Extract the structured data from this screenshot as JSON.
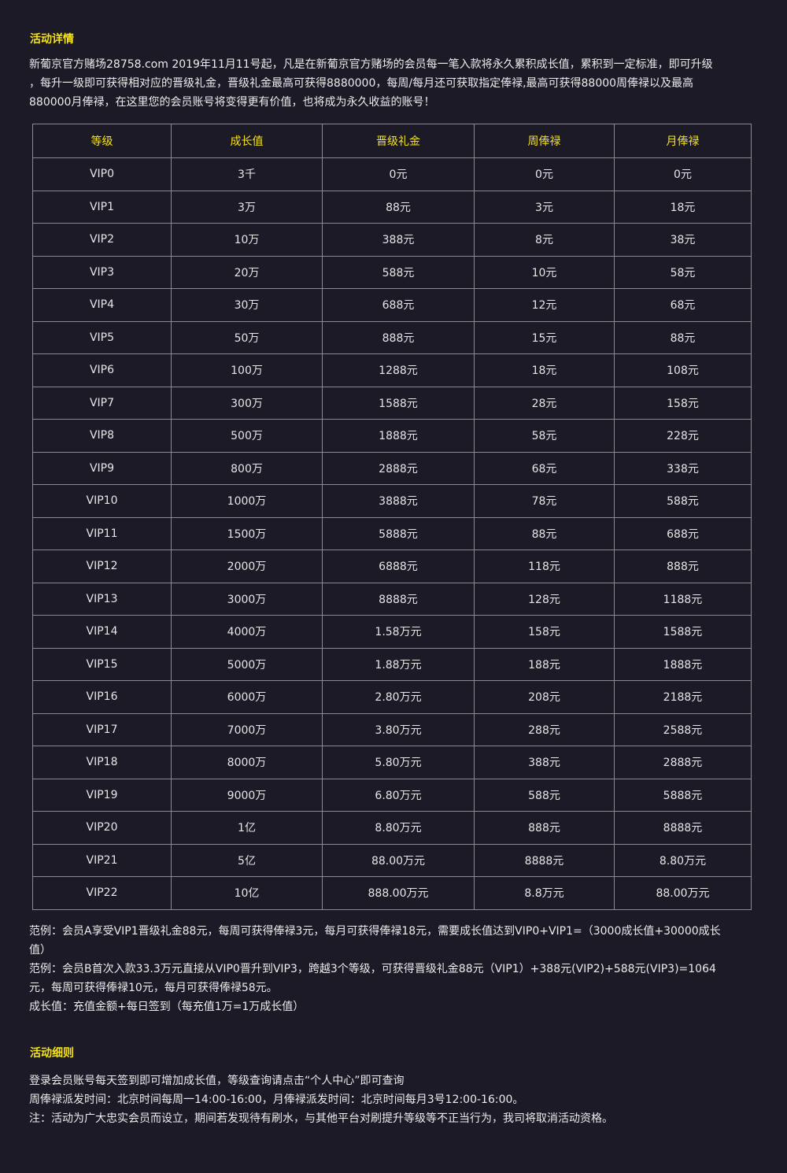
{
  "details_title": "活动详情",
  "intro": [
    "新葡京官方赌场28758.com 2019年11月11号起，凡是在新葡京官方赌场的会员每一笔入款将永久累积成长值，累积到一定标准，即可升级",
    "，每升一级即可获得相对应的晋级礼金，晋级礼金最高可获得8880000，每周/每月还可获取指定俸禄,最高可获得88000周俸禄以及最高",
    "880000月俸禄，在这里您的会员账号将变得更有价值，也将成为永久收益的账号！"
  ],
  "table": {
    "headers": [
      "等级",
      "成长值",
      "晋级礼金",
      "周俸禄",
      "月俸禄"
    ],
    "rows": [
      [
        "VIP0",
        "3千",
        "0元",
        "0元",
        "0元"
      ],
      [
        "VIP1",
        "3万",
        "88元",
        "3元",
        "18元"
      ],
      [
        "VIP2",
        "10万",
        "388元",
        "8元",
        "38元"
      ],
      [
        "VIP3",
        "20万",
        "588元",
        "10元",
        "58元"
      ],
      [
        "VIP4",
        "30万",
        "688元",
        "12元",
        "68元"
      ],
      [
        "VIP5",
        "50万",
        "888元",
        "15元",
        "88元"
      ],
      [
        "VIP6",
        "100万",
        "1288元",
        "18元",
        "108元"
      ],
      [
        "VIP7",
        "300万",
        "1588元",
        "28元",
        "158元"
      ],
      [
        "VIP8",
        "500万",
        "1888元",
        "58元",
        "228元"
      ],
      [
        "VIP9",
        "800万",
        "2888元",
        "68元",
        "338元"
      ],
      [
        "VIP10",
        "1000万",
        "3888元",
        "78元",
        "588元"
      ],
      [
        "VIP11",
        "1500万",
        "5888元",
        "88元",
        "688元"
      ],
      [
        "VIP12",
        "2000万",
        "6888元",
        "118元",
        "888元"
      ],
      [
        "VIP13",
        "3000万",
        "8888元",
        "128元",
        "1188元"
      ],
      [
        "VIP14",
        "4000万",
        "1.58万元",
        "158元",
        "1588元"
      ],
      [
        "VIP15",
        "5000万",
        "1.88万元",
        "188元",
        "1888元"
      ],
      [
        "VIP16",
        "6000万",
        "2.80万元",
        "208元",
        "2188元"
      ],
      [
        "VIP17",
        "7000万",
        "3.80万元",
        "288元",
        "2588元"
      ],
      [
        "VIP18",
        "8000万",
        "5.80万元",
        "388元",
        "2888元"
      ],
      [
        "VIP19",
        "9000万",
        "6.80万元",
        "588元",
        "5888元"
      ],
      [
        "VIP20",
        "1亿",
        "8.80万元",
        "888元",
        "8888元"
      ],
      [
        "VIP21",
        "5亿",
        "88.00万元",
        "8888元",
        "8.80万元"
      ],
      [
        "VIP22",
        "10亿",
        "888.00万元",
        "8.8万元",
        "88.00万元"
      ]
    ]
  },
  "notes": [
    "范例：会员A享受VIP1晋级礼金88元，每周可获得俸禄3元，每月可获得俸禄18元，需要成长值达到VIP0+VIP1=（3000成长值+30000成长",
    "值）",
    "范例：会员B首次入款33.3万元直接从VIP0晋升到VIP3，跨越3个等级，可获得晋级礼金88元（VIP1）+388元(VIP2)+588元(VIP3)=1064",
    "元，每周可获得俸禄10元，每月可获得俸禄58元。",
    "成长值：充值金额+每日签到（每充值1万=1万成长值）"
  ],
  "rules_title": "活动细则",
  "rules": [
    "登录会员账号每天签到即可增加成长值，等级查询请点击“个人中心”即可查询",
    "周俸禄派发时间：北京时间每周一14:00-16:00，月俸禄派发时间：北京时间每月3号12:00-16:00。",
    "注：活动为广大忠实会员而设立，期间若发现待有刷水，与其他平台对刷提升等级等不正当行为，我司将取消活动资格。"
  ],
  "colors": {
    "background": "#1c1a27",
    "accent": "#f5e21a",
    "border": "#8a8a92"
  }
}
